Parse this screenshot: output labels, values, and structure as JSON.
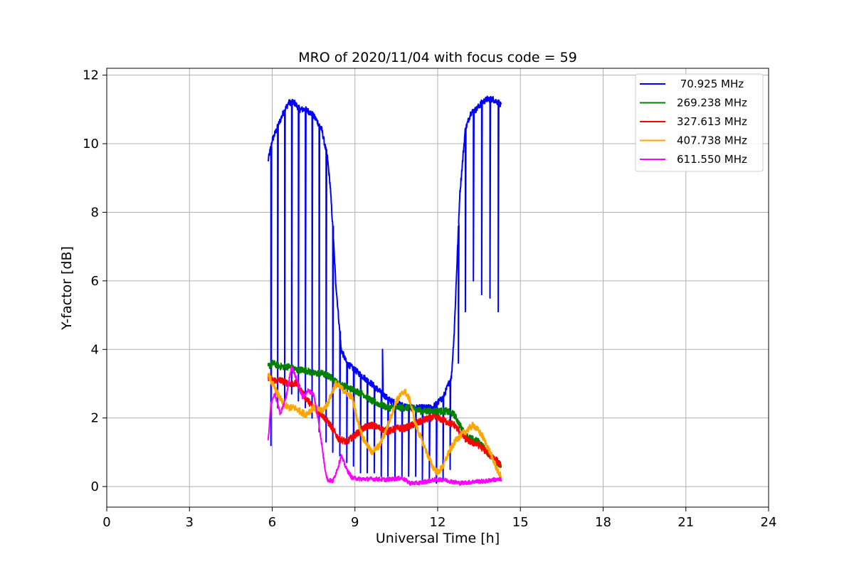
{
  "chart_data": {
    "type": "line",
    "title": "MRO of 2020/11/04 with focus code = 59",
    "xlabel": "Universal Time [h]",
    "ylabel": "Y-factor [dB]",
    "xlim": [
      0,
      24
    ],
    "ylim": [
      -0.6,
      12.2
    ],
    "xticks": [
      0,
      3,
      6,
      9,
      12,
      15,
      18,
      21,
      24
    ],
    "yticks": [
      0,
      2,
      4,
      6,
      8,
      10,
      12
    ],
    "grid": true,
    "legend_position": "top-right",
    "series": [
      {
        "name": " 70.925 MHz",
        "color": "#0000ff",
        "x": [
          5.85,
          6.0,
          6.2,
          6.4,
          6.6,
          6.8,
          7.0,
          7.2,
          7.4,
          7.6,
          7.8,
          8.0,
          8.1,
          8.2,
          8.3,
          8.4,
          8.5,
          8.7,
          9.0,
          9.3,
          9.6,
          10.0,
          10.3,
          10.6,
          11.0,
          11.4,
          11.8,
          12.2,
          12.5,
          12.6,
          12.7,
          12.8,
          13.0,
          13.2,
          13.4,
          13.6,
          13.8,
          14.0,
          14.2,
          14.3
        ],
        "y": [
          9.5,
          10.1,
          10.5,
          10.9,
          11.2,
          11.2,
          11.0,
          11.0,
          10.9,
          10.7,
          10.4,
          9.6,
          8.8,
          7.5,
          6.0,
          5.0,
          4.0,
          3.6,
          3.4,
          3.2,
          3.0,
          2.7,
          2.5,
          2.4,
          2.3,
          2.3,
          2.3,
          2.6,
          3.2,
          4.5,
          6.5,
          8.5,
          10.4,
          10.9,
          11.0,
          11.2,
          11.3,
          11.3,
          11.2,
          11.1
        ],
        "dips": [
          [
            5.95,
            1.2
          ],
          [
            6.2,
            2.3
          ],
          [
            6.45,
            2.5
          ],
          [
            6.7,
            2.7
          ],
          [
            6.95,
            2.5
          ],
          [
            7.2,
            2.3
          ],
          [
            7.45,
            2.0
          ],
          [
            7.7,
            1.6
          ],
          [
            7.95,
            1.3
          ],
          [
            8.2,
            1.0
          ],
          [
            8.45,
            0.9
          ],
          [
            8.7,
            0.7
          ],
          [
            8.95,
            0.6
          ],
          [
            9.2,
            0.4
          ],
          [
            9.45,
            0.4
          ],
          [
            9.7,
            0.4
          ],
          [
            9.95,
            0.3
          ],
          [
            10.2,
            0.3
          ],
          [
            10.45,
            0.2
          ],
          [
            10.7,
            0.3
          ],
          [
            10.95,
            0.3
          ],
          [
            11.2,
            0.3
          ],
          [
            11.45,
            0.2
          ],
          [
            11.7,
            0.2
          ],
          [
            11.95,
            0.1
          ],
          [
            12.2,
            0.2
          ],
          [
            12.45,
            0.5
          ],
          [
            12.75,
            3.6
          ],
          [
            13.0,
            5.1
          ],
          [
            13.3,
            6.0
          ],
          [
            13.6,
            5.6
          ],
          [
            13.9,
            5.5
          ],
          [
            14.2,
            5.1
          ]
        ],
        "spikes": [
          [
            10.0,
            4.0
          ]
        ]
      },
      {
        "name": "269.238 MHz",
        "color": "#008000",
        "x": [
          5.85,
          6.0,
          6.3,
          6.6,
          6.9,
          7.2,
          7.5,
          7.8,
          8.1,
          8.4,
          8.7,
          9.0,
          9.3,
          9.6,
          9.9,
          10.2,
          10.5,
          10.8,
          11.1,
          11.4,
          11.7,
          12.0,
          12.3,
          12.6,
          12.8,
          13.0,
          13.2,
          13.5,
          13.8,
          14.1,
          14.3
        ],
        "y": [
          3.5,
          3.6,
          3.5,
          3.5,
          3.4,
          3.4,
          3.3,
          3.3,
          3.2,
          3.0,
          2.9,
          2.8,
          2.7,
          2.5,
          2.4,
          2.3,
          2.3,
          2.3,
          2.3,
          2.2,
          2.2,
          2.2,
          2.2,
          2.1,
          1.8,
          1.5,
          1.4,
          1.3,
          1.0,
          0.7,
          0.6
        ]
      },
      {
        "name": "327.613 MHz",
        "color": "#ff0000",
        "x": [
          5.85,
          6.0,
          6.3,
          6.6,
          6.9,
          7.2,
          7.5,
          7.8,
          8.1,
          8.4,
          8.7,
          9.0,
          9.3,
          9.6,
          9.9,
          10.2,
          10.5,
          10.8,
          11.1,
          11.4,
          11.7,
          12.0,
          12.3,
          12.6,
          12.8,
          13.0,
          13.2,
          13.5,
          13.8,
          14.1,
          14.3
        ],
        "y": [
          3.2,
          3.1,
          3.1,
          3.0,
          3.0,
          2.6,
          2.3,
          2.1,
          1.8,
          1.4,
          1.3,
          1.5,
          1.7,
          1.8,
          1.7,
          1.6,
          1.7,
          1.7,
          1.8,
          1.9,
          2.0,
          2.0,
          1.9,
          1.8,
          1.6,
          1.4,
          1.3,
          1.2,
          1.0,
          0.8,
          0.6
        ]
      },
      {
        "name": "407.738 MHz",
        "color": "#ffa500",
        "x": [
          5.85,
          6.0,
          6.2,
          6.4,
          6.6,
          6.8,
          7.0,
          7.2,
          7.5,
          7.8,
          8.0,
          8.3,
          8.6,
          8.9,
          9.1,
          9.3,
          9.6,
          9.9,
          10.2,
          10.5,
          10.8,
          11.0,
          11.2,
          11.4,
          11.6,
          11.8,
          12.0,
          12.2,
          12.4,
          12.7,
          13.0,
          13.3,
          13.6,
          13.9,
          14.2,
          14.3
        ],
        "y": [
          3.3,
          3.0,
          2.7,
          2.4,
          2.3,
          2.3,
          2.2,
          2.1,
          2.3,
          2.2,
          2.4,
          3.0,
          2.8,
          2.6,
          1.9,
          1.4,
          1.0,
          1.2,
          1.8,
          2.5,
          2.8,
          2.5,
          1.8,
          1.4,
          1.0,
          0.6,
          0.4,
          0.6,
          1.0,
          1.4,
          1.6,
          1.8,
          1.5,
          1.0,
          0.4,
          0.3
        ]
      },
      {
        "name": "611.550 MHz",
        "color": "#ff00ff",
        "x": [
          5.85,
          5.95,
          6.1,
          6.3,
          6.5,
          6.7,
          6.9,
          7.1,
          7.3,
          7.5,
          7.7,
          7.9,
          8.0,
          8.2,
          8.4,
          8.5,
          8.7,
          8.9,
          9.2,
          9.5,
          9.8,
          10.1,
          10.4,
          10.7,
          11.0,
          11.3,
          11.6,
          11.9,
          12.2,
          12.5,
          12.8,
          13.1,
          13.4,
          13.7,
          14.0,
          14.3
        ],
        "y": [
          1.3,
          2.4,
          2.7,
          2.1,
          2.6,
          3.5,
          3.1,
          2.6,
          2.8,
          2.7,
          1.8,
          0.6,
          0.2,
          0.15,
          0.6,
          0.9,
          0.5,
          0.25,
          0.22,
          0.22,
          0.22,
          0.2,
          0.22,
          0.25,
          0.1,
          0.1,
          0.15,
          0.2,
          0.2,
          0.15,
          0.1,
          0.12,
          0.15,
          0.15,
          0.2,
          0.2
        ]
      }
    ]
  }
}
